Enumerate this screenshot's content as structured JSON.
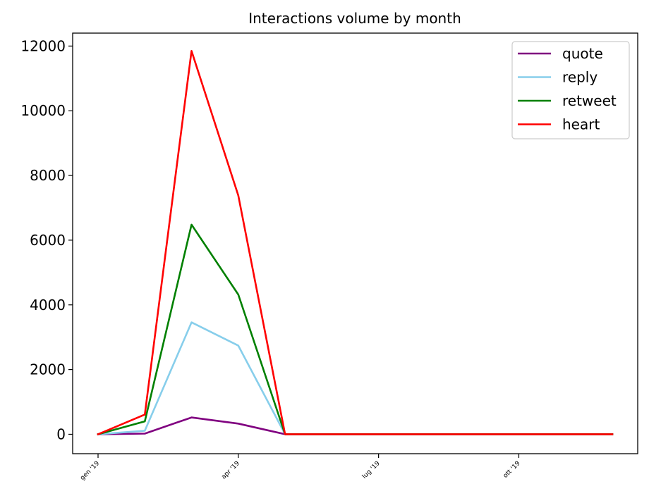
{
  "chart_data": {
    "type": "line",
    "title": "Interactions volume by month",
    "xlabel": "",
    "ylabel": "",
    "x": [
      "2019-01",
      "2019-02",
      "2019-03",
      "2019-04",
      "2019-05",
      "2019-06",
      "2019-07",
      "2019-08",
      "2019-09",
      "2019-10",
      "2019-11",
      "2019-12"
    ],
    "x_ticks": [
      {
        "value": "2019-01",
        "label": "gen '19"
      },
      {
        "value": "2019-04",
        "label": "apr '19"
      },
      {
        "value": "2019-07",
        "label": "lug '19"
      },
      {
        "value": "2019-10",
        "label": "ott '19"
      }
    ],
    "ylim": [
      -600,
      12400
    ],
    "yticks": [
      0,
      2000,
      4000,
      6000,
      8000,
      10000,
      12000
    ],
    "grid": false,
    "legend_position": "top-right",
    "series": [
      {
        "name": "quote",
        "color": "#800080",
        "values": [
          0,
          20,
          520,
          330,
          0,
          0,
          0,
          0,
          0,
          0,
          0,
          0
        ]
      },
      {
        "name": "reply",
        "color": "#87ceeb",
        "values": [
          0,
          110,
          3460,
          2740,
          0,
          0,
          0,
          0,
          0,
          0,
          0,
          0
        ]
      },
      {
        "name": "retweet",
        "color": "#008000",
        "values": [
          0,
          400,
          6480,
          4320,
          0,
          0,
          0,
          0,
          0,
          0,
          0,
          0
        ]
      },
      {
        "name": "heart",
        "color": "#ff0000",
        "values": [
          0,
          610,
          11850,
          7380,
          0,
          0,
          0,
          0,
          0,
          0,
          0,
          0
        ]
      }
    ]
  }
}
